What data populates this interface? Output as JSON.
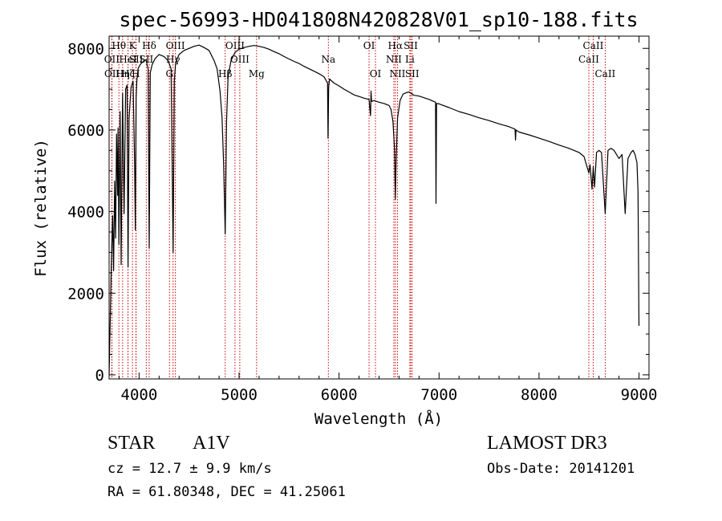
{
  "chart_data": {
    "type": "line",
    "title": "spec-56993-HD041808N420828V01_sp10-188.fits",
    "xlabel": "Wavelength (Å)",
    "ylabel": "Flux (relative)",
    "xlim": [
      3700,
      9100
    ],
    "ylim": [
      -100,
      8300
    ],
    "xticks": [
      4000,
      5000,
      6000,
      7000,
      8000,
      9000
    ],
    "yticks": [
      0,
      2000,
      4000,
      6000,
      8000
    ],
    "xtick_labels": [
      "4000",
      "5000",
      "6000",
      "7000",
      "8000",
      "9000"
    ],
    "ytick_labels": [
      "0",
      "2000",
      "4000",
      "6000",
      "8000"
    ],
    "series": [
      {
        "name": "spectrum",
        "x": [
          3700,
          3712,
          3722,
          3735,
          3745,
          3755,
          3765,
          3775,
          3785,
          3790,
          3798,
          3810,
          3820,
          3835,
          3850,
          3865,
          3880,
          3889,
          3900,
          3920,
          3940,
          3955,
          3962,
          3970,
          3978,
          3990,
          4010,
          4030,
          4050,
          4070,
          4090,
          4101,
          4112,
          4130,
          4160,
          4200,
          4250,
          4290,
          4320,
          4340,
          4352,
          4365,
          4400,
          4450,
          4500,
          4550,
          4600,
          4650,
          4700,
          4750,
          4780,
          4810,
          4830,
          4845,
          4855,
          4861,
          4867,
          4875,
          4890,
          4920,
          4960,
          5000,
          5050,
          5100,
          5150,
          5200,
          5250,
          5300,
          5350,
          5400,
          5450,
          5500,
          5550,
          5600,
          5650,
          5700,
          5750,
          5800,
          5850,
          5885,
          5890,
          5896,
          5905,
          5950,
          6000,
          6050,
          6100,
          6150,
          6200,
          6250,
          6300,
          6315,
          6320,
          6325,
          6350,
          6400,
          6450,
          6500,
          6520,
          6540,
          6555,
          6563,
          6570,
          6585,
          6610,
          6640,
          6680,
          6700,
          6750,
          6800,
          6900,
          6965,
          6970,
          6975,
          7000,
          7100,
          7200,
          7300,
          7400,
          7500,
          7600,
          7700,
          7760,
          7765,
          7770,
          7800,
          7900,
          8000,
          8100,
          8200,
          8300,
          8400,
          8450,
          8480,
          8498,
          8510,
          8530,
          8542,
          8555,
          8575,
          8600,
          8625,
          8662,
          8690,
          8720,
          8750,
          8800,
          8830,
          8862,
          8890,
          8920,
          8940,
          8960,
          8980,
          8990,
          9000
        ],
        "y": [
          0,
          1450,
          2650,
          3900,
          2550,
          4750,
          3350,
          5900,
          4400,
          6050,
          3200,
          6450,
          2700,
          6900,
          3950,
          7000,
          7100,
          2650,
          6300,
          7050,
          7200,
          5200,
          3550,
          6800,
          7200,
          7500,
          7600,
          7650,
          7700,
          7720,
          7500,
          3100,
          7400,
          7600,
          7750,
          7850,
          7800,
          7700,
          7500,
          3000,
          7200,
          7650,
          7850,
          7950,
          8000,
          8050,
          8080,
          8020,
          7950,
          7700,
          7500,
          6950,
          6300,
          5200,
          4200,
          3450,
          4500,
          6200,
          7300,
          7700,
          7900,
          7980,
          8020,
          8050,
          8070,
          8050,
          8020,
          7980,
          7920,
          7870,
          7800,
          7740,
          7680,
          7630,
          7560,
          7500,
          7440,
          7380,
          7300,
          7150,
          5800,
          7050,
          7250,
          7150,
          7080,
          7000,
          6930,
          6860,
          6820,
          6780,
          6750,
          6350,
          6950,
          6700,
          6720,
          6680,
          6650,
          6600,
          6500,
          6200,
          5500,
          4300,
          5200,
          6300,
          6720,
          6880,
          6920,
          6930,
          6850,
          6830,
          6750,
          6680,
          4200,
          6650,
          6640,
          6550,
          6450,
          6380,
          6300,
          6230,
          6150,
          6080,
          6020,
          5750,
          6000,
          5950,
          5880,
          5800,
          5720,
          5630,
          5550,
          5450,
          5350,
          5100,
          4950,
          5150,
          4550,
          5100,
          4600,
          5450,
          5500,
          5450,
          3950,
          5500,
          5550,
          5500,
          5300,
          5400,
          3950,
          5300,
          5450,
          5500,
          5400,
          5200,
          4500,
          1200
        ]
      }
    ],
    "line_markers": [
      {
        "label": "Hθ",
        "x": 3798,
        "row": 1
      },
      {
        "label": "OII",
        "x": 3727,
        "row": 2
      },
      {
        "label": "OII",
        "x": 3729,
        "row": 3
      },
      {
        "label": "Hη",
        "x": 3835,
        "row": 3
      },
      {
        "label": "Hζ",
        "x": 3889,
        "row": 3
      },
      {
        "label": "HeI",
        "x": 3889,
        "row": 2
      },
      {
        "label": "K",
        "x": 3934,
        "row": 1
      },
      {
        "label": "SII",
        "x": 3970,
        "row": 2
      },
      {
        "label": "H",
        "x": 3968,
        "row": 3
      },
      {
        "label": "Hδ",
        "x": 4101,
        "row": 1
      },
      {
        "label": "SII",
        "x": 4072,
        "row": 2
      },
      {
        "label": "OIII",
        "x": 4363,
        "row": 1
      },
      {
        "label": "Hγ",
        "x": 4340,
        "row": 2
      },
      {
        "label": "G",
        "x": 4304,
        "row": 3
      },
      {
        "label": "OIII",
        "x": 4959,
        "row": 1
      },
      {
        "label": "OIII",
        "x": 5007,
        "row": 2
      },
      {
        "label": "Hβ",
        "x": 4861,
        "row": 3
      },
      {
        "label": "Mg",
        "x": 5175,
        "row": 3
      },
      {
        "label": "Na",
        "x": 5893,
        "row": 2
      },
      {
        "label": "OI",
        "x": 6300,
        "row": 1
      },
      {
        "label": "OI",
        "x": 6364,
        "row": 3
      },
      {
        "label": "Hα",
        "x": 6563,
        "row": 1
      },
      {
        "label": "NII",
        "x": 6548,
        "row": 2
      },
      {
        "label": "NII",
        "x": 6584,
        "row": 3
      },
      {
        "label": "SII",
        "x": 6717,
        "row": 1
      },
      {
        "label": "Li",
        "x": 6708,
        "row": 2
      },
      {
        "label": "SII",
        "x": 6731,
        "row": 3
      },
      {
        "label": "CaII",
        "x": 8542,
        "row": 1
      },
      {
        "label": "CaII",
        "x": 8498,
        "row": 2
      },
      {
        "label": "CaII",
        "x": 8662,
        "row": 3
      }
    ]
  },
  "info": {
    "object_class": "STAR",
    "subclass": "A1V",
    "survey": "LAMOST DR3",
    "cz": "cz = 12.7 ± 9.9 km/s",
    "obs_date": "Obs-Date: 20141201",
    "radec": "RA =  61.80348, DEC =  41.25061"
  },
  "colors": {
    "axes": "#000000",
    "spectrum": "#000000",
    "marker_line": "#cc0000",
    "background": "#ffffff"
  }
}
